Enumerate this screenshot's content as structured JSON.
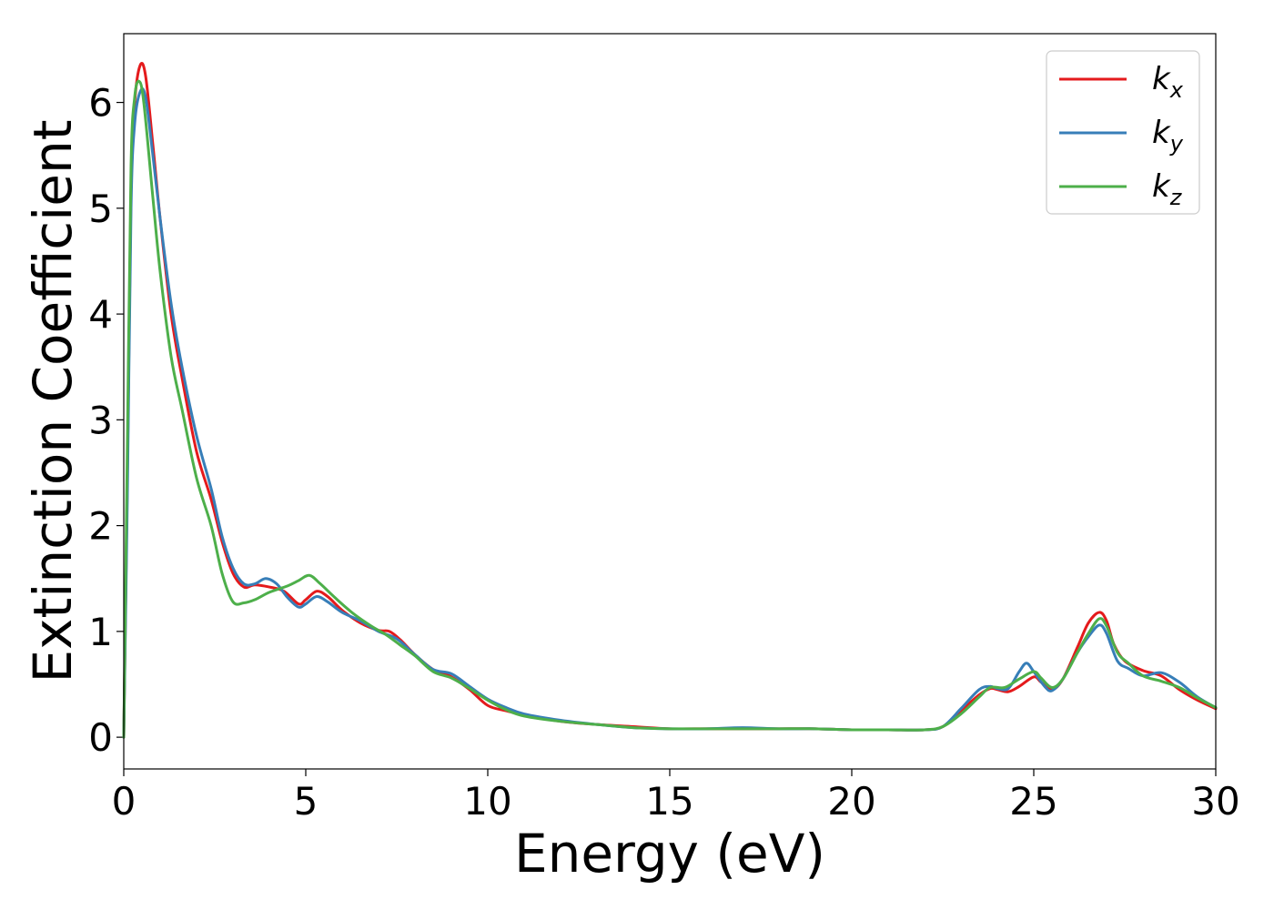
{
  "chart_data": {
    "type": "line",
    "xlabel": "Energy (eV)",
    "ylabel": "Extinction Coefficient",
    "xlim": [
      0,
      30
    ],
    "ylim": [
      -0.3,
      6.65
    ],
    "xticks": [
      0,
      5,
      10,
      15,
      20,
      25,
      30
    ],
    "xtick_labels": [
      "0",
      "5",
      "10",
      "15",
      "20",
      "25",
      "30"
    ],
    "yticks": [
      0,
      1,
      2,
      3,
      4,
      5,
      6
    ],
    "ytick_labels": [
      "0",
      "1",
      "2",
      "3",
      "4",
      "5",
      "6"
    ],
    "grid": false,
    "legend_position": "top-right",
    "series": [
      {
        "name": "k_x",
        "label_main": "k",
        "label_sub": "x",
        "color": "#e41a1c",
        "points": [
          [
            0,
            0.0
          ],
          [
            0.1,
            2.5
          ],
          [
            0.2,
            5.2
          ],
          [
            0.3,
            6.0
          ],
          [
            0.45,
            6.35
          ],
          [
            0.6,
            6.25
          ],
          [
            0.8,
            5.6
          ],
          [
            1.0,
            4.9
          ],
          [
            1.3,
            4.0
          ],
          [
            1.6,
            3.4
          ],
          [
            2.0,
            2.7
          ],
          [
            2.4,
            2.25
          ],
          [
            2.7,
            1.85
          ],
          [
            3.0,
            1.55
          ],
          [
            3.3,
            1.42
          ],
          [
            3.6,
            1.44
          ],
          [
            4.0,
            1.42
          ],
          [
            4.4,
            1.38
          ],
          [
            4.8,
            1.26
          ],
          [
            5.0,
            1.3
          ],
          [
            5.3,
            1.38
          ],
          [
            5.6,
            1.33
          ],
          [
            6.0,
            1.2
          ],
          [
            6.5,
            1.08
          ],
          [
            7.0,
            1.01
          ],
          [
            7.3,
            1.0
          ],
          [
            7.6,
            0.92
          ],
          [
            8.0,
            0.78
          ],
          [
            8.5,
            0.64
          ],
          [
            9.0,
            0.57
          ],
          [
            9.5,
            0.45
          ],
          [
            10.0,
            0.3
          ],
          [
            10.5,
            0.25
          ],
          [
            11.0,
            0.21
          ],
          [
            12.0,
            0.15
          ],
          [
            13.0,
            0.12
          ],
          [
            14.0,
            0.1
          ],
          [
            15.0,
            0.08
          ],
          [
            16.0,
            0.08
          ],
          [
            17.0,
            0.08
          ],
          [
            18.0,
            0.08
          ],
          [
            19.0,
            0.08
          ],
          [
            20.0,
            0.07
          ],
          [
            21.0,
            0.07
          ],
          [
            22.0,
            0.07
          ],
          [
            22.5,
            0.1
          ],
          [
            23.0,
            0.25
          ],
          [
            23.5,
            0.4
          ],
          [
            23.8,
            0.46
          ],
          [
            24.0,
            0.45
          ],
          [
            24.3,
            0.43
          ],
          [
            24.6,
            0.48
          ],
          [
            25.0,
            0.57
          ],
          [
            25.2,
            0.52
          ],
          [
            25.5,
            0.45
          ],
          [
            25.8,
            0.55
          ],
          [
            26.2,
            0.85
          ],
          [
            26.5,
            1.08
          ],
          [
            26.8,
            1.18
          ],
          [
            27.0,
            1.1
          ],
          [
            27.2,
            0.88
          ],
          [
            27.5,
            0.72
          ],
          [
            28.0,
            0.63
          ],
          [
            28.5,
            0.58
          ],
          [
            29.0,
            0.45
          ],
          [
            29.5,
            0.35
          ],
          [
            30.0,
            0.27
          ]
        ]
      },
      {
        "name": "k_y",
        "label_main": "k",
        "label_sub": "y",
        "color": "#377eb8",
        "points": [
          [
            0,
            0.0
          ],
          [
            0.1,
            2.3
          ],
          [
            0.2,
            5.0
          ],
          [
            0.3,
            5.8
          ],
          [
            0.45,
            6.1
          ],
          [
            0.6,
            6.05
          ],
          [
            0.8,
            5.5
          ],
          [
            1.0,
            4.9
          ],
          [
            1.3,
            4.1
          ],
          [
            1.6,
            3.5
          ],
          [
            2.0,
            2.85
          ],
          [
            2.4,
            2.35
          ],
          [
            2.7,
            1.9
          ],
          [
            3.0,
            1.6
          ],
          [
            3.3,
            1.45
          ],
          [
            3.6,
            1.45
          ],
          [
            3.9,
            1.5
          ],
          [
            4.2,
            1.45
          ],
          [
            4.5,
            1.32
          ],
          [
            4.8,
            1.23
          ],
          [
            5.0,
            1.26
          ],
          [
            5.3,
            1.33
          ],
          [
            5.6,
            1.28
          ],
          [
            6.0,
            1.18
          ],
          [
            6.5,
            1.1
          ],
          [
            7.0,
            1.0
          ],
          [
            7.5,
            0.93
          ],
          [
            8.0,
            0.78
          ],
          [
            8.5,
            0.64
          ],
          [
            9.0,
            0.6
          ],
          [
            9.5,
            0.48
          ],
          [
            10.0,
            0.36
          ],
          [
            10.5,
            0.28
          ],
          [
            11.0,
            0.22
          ],
          [
            12.0,
            0.16
          ],
          [
            13.0,
            0.12
          ],
          [
            14.0,
            0.09
          ],
          [
            15.0,
            0.08
          ],
          [
            16.0,
            0.08
          ],
          [
            17.0,
            0.09
          ],
          [
            18.0,
            0.08
          ],
          [
            19.0,
            0.08
          ],
          [
            20.0,
            0.07
          ],
          [
            21.0,
            0.07
          ],
          [
            22.0,
            0.07
          ],
          [
            22.5,
            0.1
          ],
          [
            23.0,
            0.27
          ],
          [
            23.5,
            0.45
          ],
          [
            23.8,
            0.48
          ],
          [
            24.0,
            0.46
          ],
          [
            24.3,
            0.46
          ],
          [
            24.6,
            0.62
          ],
          [
            24.8,
            0.7
          ],
          [
            25.0,
            0.62
          ],
          [
            25.3,
            0.48
          ],
          [
            25.5,
            0.44
          ],
          [
            25.8,
            0.55
          ],
          [
            26.2,
            0.8
          ],
          [
            26.5,
            0.95
          ],
          [
            26.8,
            1.06
          ],
          [
            27.0,
            0.98
          ],
          [
            27.3,
            0.72
          ],
          [
            27.6,
            0.65
          ],
          [
            28.0,
            0.58
          ],
          [
            28.5,
            0.61
          ],
          [
            29.0,
            0.52
          ],
          [
            29.5,
            0.38
          ],
          [
            30.0,
            0.28
          ]
        ]
      },
      {
        "name": "k_z",
        "label_main": "k",
        "label_sub": "z",
        "color": "#4daf4a",
        "points": [
          [
            0,
            0.0
          ],
          [
            0.1,
            2.8
          ],
          [
            0.2,
            5.4
          ],
          [
            0.3,
            6.05
          ],
          [
            0.42,
            6.2
          ],
          [
            0.55,
            6.0
          ],
          [
            0.8,
            5.1
          ],
          [
            1.0,
            4.4
          ],
          [
            1.3,
            3.6
          ],
          [
            1.6,
            3.1
          ],
          [
            2.0,
            2.45
          ],
          [
            2.4,
            2.0
          ],
          [
            2.7,
            1.55
          ],
          [
            3.0,
            1.28
          ],
          [
            3.3,
            1.27
          ],
          [
            3.6,
            1.3
          ],
          [
            4.0,
            1.37
          ],
          [
            4.5,
            1.43
          ],
          [
            4.8,
            1.48
          ],
          [
            5.1,
            1.53
          ],
          [
            5.4,
            1.45
          ],
          [
            5.8,
            1.32
          ],
          [
            6.3,
            1.17
          ],
          [
            6.8,
            1.05
          ],
          [
            7.2,
            0.97
          ],
          [
            7.6,
            0.87
          ],
          [
            8.0,
            0.77
          ],
          [
            8.5,
            0.62
          ],
          [
            9.0,
            0.56
          ],
          [
            9.5,
            0.46
          ],
          [
            10.0,
            0.35
          ],
          [
            10.5,
            0.26
          ],
          [
            11.0,
            0.2
          ],
          [
            12.0,
            0.15
          ],
          [
            13.0,
            0.12
          ],
          [
            14.0,
            0.09
          ],
          [
            15.0,
            0.08
          ],
          [
            16.0,
            0.08
          ],
          [
            17.0,
            0.08
          ],
          [
            18.0,
            0.08
          ],
          [
            19.0,
            0.08
          ],
          [
            20.0,
            0.07
          ],
          [
            21.0,
            0.07
          ],
          [
            22.0,
            0.07
          ],
          [
            22.5,
            0.1
          ],
          [
            23.0,
            0.22
          ],
          [
            23.5,
            0.38
          ],
          [
            23.8,
            0.47
          ],
          [
            24.2,
            0.47
          ],
          [
            24.6,
            0.55
          ],
          [
            25.0,
            0.62
          ],
          [
            25.2,
            0.56
          ],
          [
            25.5,
            0.47
          ],
          [
            25.8,
            0.55
          ],
          [
            26.2,
            0.8
          ],
          [
            26.5,
            0.98
          ],
          [
            26.8,
            1.12
          ],
          [
            27.0,
            1.05
          ],
          [
            27.3,
            0.8
          ],
          [
            27.6,
            0.7
          ],
          [
            28.0,
            0.58
          ],
          [
            28.5,
            0.53
          ],
          [
            29.0,
            0.47
          ],
          [
            29.5,
            0.37
          ],
          [
            30.0,
            0.28
          ]
        ]
      }
    ]
  }
}
